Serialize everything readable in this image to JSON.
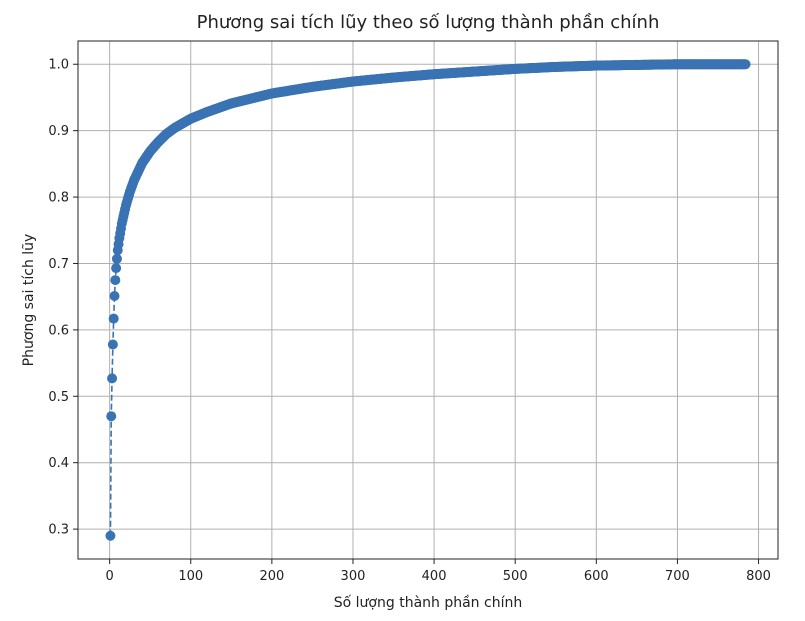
{
  "chart_data": {
    "type": "line",
    "title": "Phương sai tích lũy theo số lượng thành phần chính",
    "xlabel": "Số lượng thành phần chính",
    "ylabel": "Phương sai tích lũy",
    "xlim": [
      -39,
      824
    ],
    "ylim": [
      0.255,
      1.035
    ],
    "xticks": [
      0,
      100,
      200,
      300,
      400,
      500,
      600,
      700,
      800
    ],
    "yticks": [
      0.3,
      0.4,
      0.5,
      0.6,
      0.7,
      0.8,
      0.9,
      1.0
    ],
    "xtick_labels": [
      "0",
      "100",
      "200",
      "300",
      "400",
      "500",
      "600",
      "700",
      "800"
    ],
    "ytick_labels": [
      "0.3",
      "0.4",
      "0.5",
      "0.6",
      "0.7",
      "0.8",
      "0.9",
      "1.0"
    ],
    "grid": true,
    "line_style": "dashed",
    "marker": "circle",
    "color": "#3a73b3",
    "n_points": 784,
    "anchors": [
      [
        1,
        0.29
      ],
      [
        2,
        0.47
      ],
      [
        3,
        0.527
      ],
      [
        4,
        0.578
      ],
      [
        5,
        0.617
      ],
      [
        6,
        0.651
      ],
      [
        7,
        0.675
      ],
      [
        8,
        0.693
      ],
      [
        9,
        0.707
      ],
      [
        10,
        0.72
      ],
      [
        12,
        0.738
      ],
      [
        15,
        0.76
      ],
      [
        20,
        0.787
      ],
      [
        25,
        0.808
      ],
      [
        30,
        0.825
      ],
      [
        40,
        0.851
      ],
      [
        50,
        0.869
      ],
      [
        60,
        0.883
      ],
      [
        70,
        0.895
      ],
      [
        80,
        0.904
      ],
      [
        100,
        0.918
      ],
      [
        120,
        0.928
      ],
      [
        150,
        0.941
      ],
      [
        200,
        0.956
      ],
      [
        250,
        0.966
      ],
      [
        300,
        0.974
      ],
      [
        350,
        0.98
      ],
      [
        400,
        0.985
      ],
      [
        450,
        0.989
      ],
      [
        500,
        0.993
      ],
      [
        550,
        0.996
      ],
      [
        600,
        0.998
      ],
      [
        650,
        0.999
      ],
      [
        700,
        1.0
      ],
      [
        784,
        1.0
      ]
    ]
  }
}
